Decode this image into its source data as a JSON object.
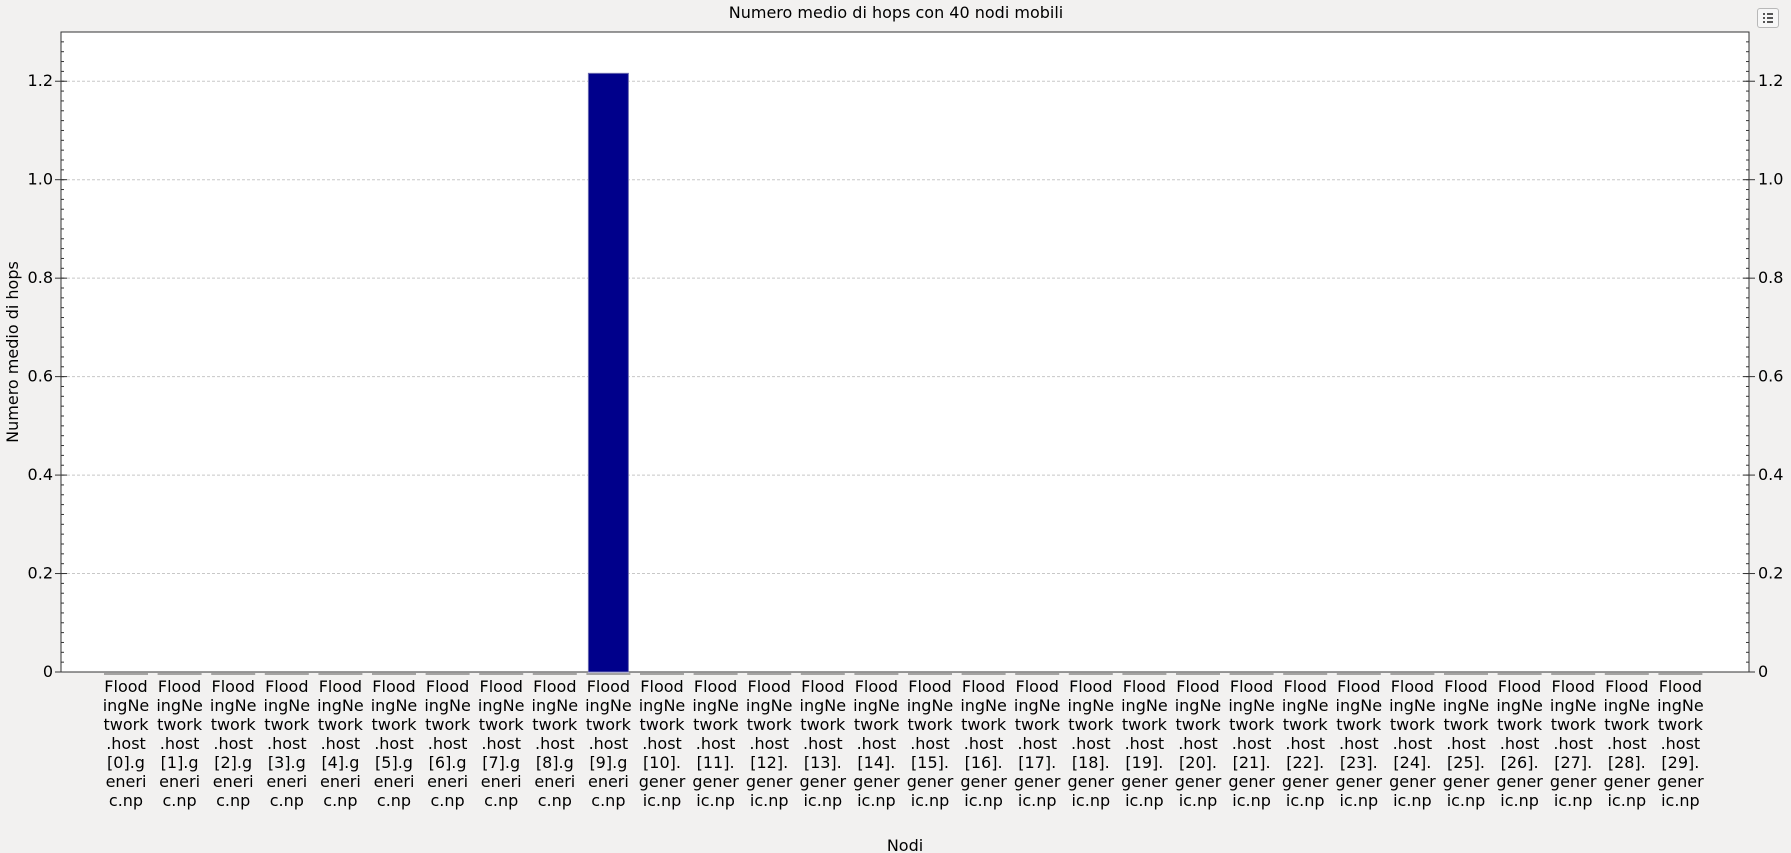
{
  "chart_data": {
    "type": "bar",
    "title": "Numero medio di hops con 40 nodi mobili",
    "xlabel": "Nodi",
    "ylabel": "Numero medio di hops",
    "ylim": [
      0,
      1.3
    ],
    "yticks": [
      "0",
      "0.2",
      "0.4",
      "0.6",
      "0.8",
      "1.0",
      "1.2"
    ],
    "ytick_values": [
      0,
      0.2,
      0.4,
      0.6,
      0.8,
      1.0,
      1.2
    ],
    "grid": true,
    "bar_color": "#00008b",
    "categories": [
      "FloodingNetwork.host[0].generic.np",
      "FloodingNetwork.host[1].generic.np",
      "FloodingNetwork.host[2].generic.np",
      "FloodingNetwork.host[3].generic.np",
      "FloodingNetwork.host[4].generic.np",
      "FloodingNetwork.host[5].generic.np",
      "FloodingNetwork.host[6].generic.np",
      "FloodingNetwork.host[7].generic.np",
      "FloodingNetwork.host[8].generic.np",
      "FloodingNetwork.host[9].generic.np",
      "FloodingNetwork.host[10].generic.np",
      "FloodingNetwork.host[11].generic.np",
      "FloodingNetwork.host[12].generic.np",
      "FloodingNetwork.host[13].generic.np",
      "FloodingNetwork.host[14].generic.np",
      "FloodingNetwork.host[15].generic.np",
      "FloodingNetwork.host[16].generic.np",
      "FloodingNetwork.host[17].generic.np",
      "FloodingNetwork.host[18].generic.np",
      "FloodingNetwork.host[19].generic.np",
      "FloodingNetwork.host[20].generic.np",
      "FloodingNetwork.host[21].generic.np",
      "FloodingNetwork.host[22].generic.np",
      "FloodingNetwork.host[23].generic.np",
      "FloodingNetwork.host[24].generic.np",
      "FloodingNetwork.host[25].generic.np",
      "FloodingNetwork.host[26].generic.np",
      "FloodingNetwork.host[27].generic.np",
      "FloodingNetwork.host[28].generic.np",
      "FloodingNetwork.host[29].generic.np"
    ],
    "values": [
      0,
      0,
      0,
      0,
      0,
      0,
      0,
      0,
      0,
      1.216,
      0,
      0,
      0,
      0,
      0,
      0,
      0,
      0,
      0,
      0,
      0,
      0,
      0,
      0,
      0,
      0,
      0,
      0,
      0,
      0
    ]
  },
  "toolbar": {
    "menu_icon": "list-menu-icon"
  }
}
